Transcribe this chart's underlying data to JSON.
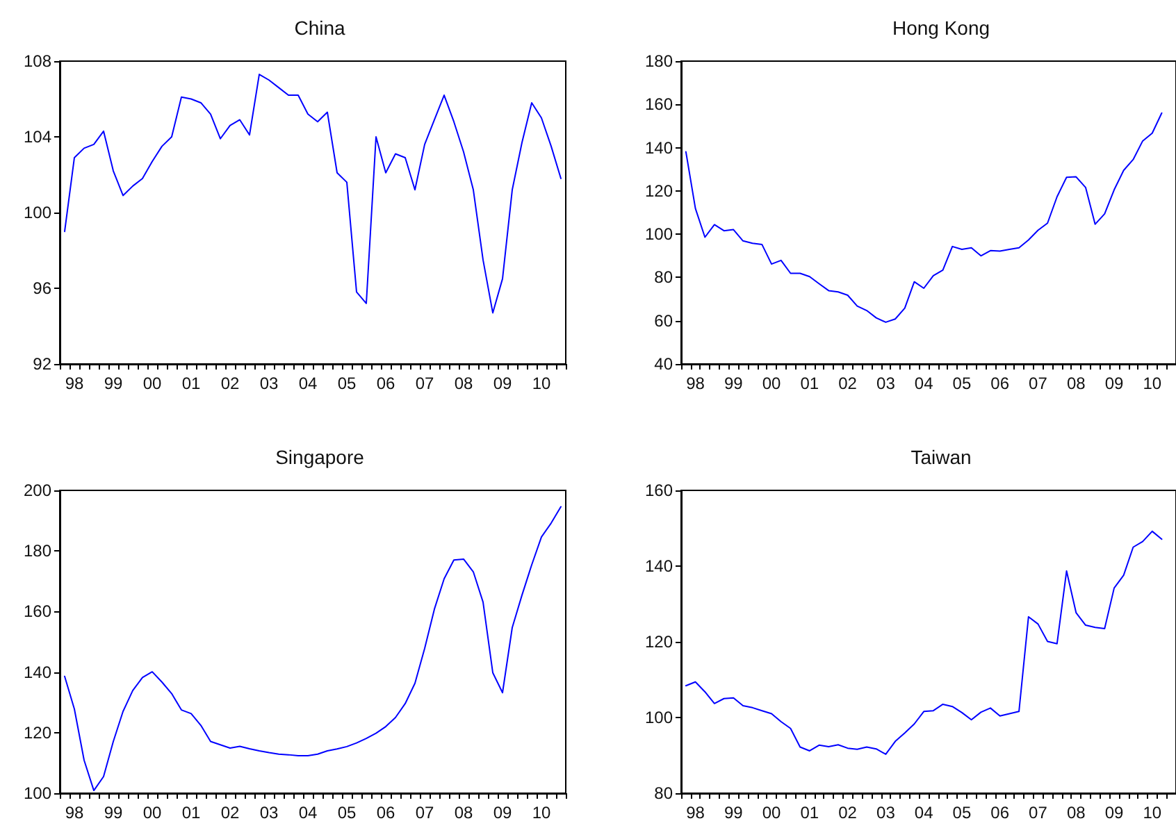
{
  "chart_data": [
    {
      "type": "line",
      "title": "China",
      "categories": [
        null,
        "98",
        null,
        null,
        null,
        "99",
        null,
        null,
        null,
        "00",
        null,
        null,
        null,
        "01",
        null,
        null,
        null,
        "02",
        null,
        null,
        null,
        "03",
        null,
        null,
        null,
        "04",
        null,
        null,
        null,
        "05",
        null,
        null,
        null,
        "06",
        null,
        null,
        null,
        "07",
        null,
        null,
        null,
        "08",
        null,
        null,
        null,
        "09",
        null,
        null,
        null,
        "10",
        null,
        null
      ],
      "series": [
        {
          "color": "#0000ff",
          "values": [
            99.0,
            102.9,
            103.4,
            103.6,
            104.3,
            102.2,
            100.9,
            101.4,
            101.8,
            102.7,
            103.5,
            104.0,
            106.1,
            106.0,
            105.8,
            105.2,
            103.9,
            104.6,
            104.9,
            104.1,
            107.3,
            107.0,
            106.6,
            106.2,
            106.2,
            105.2,
            104.8,
            105.3,
            102.1,
            101.6,
            95.8,
            95.2,
            104.0,
            102.1,
            103.1,
            102.9,
            101.2,
            103.6,
            104.9,
            106.2,
            104.8,
            103.2,
            101.2,
            97.5,
            94.7,
            96.5,
            101.2,
            103.7,
            105.8,
            105.0,
            103.5,
            101.8
          ]
        }
      ],
      "ylim": [
        92,
        108
      ],
      "yticks": [
        92,
        96,
        100,
        104,
        108
      ],
      "grid": false
    },
    {
      "type": "line",
      "title": "Hong Kong",
      "categories": [
        null,
        "98",
        null,
        null,
        null,
        "99",
        null,
        null,
        null,
        "00",
        null,
        null,
        null,
        "01",
        null,
        null,
        null,
        "02",
        null,
        null,
        null,
        "03",
        null,
        null,
        null,
        "04",
        null,
        null,
        null,
        "05",
        null,
        null,
        null,
        "06",
        null,
        null,
        null,
        "07",
        null,
        null,
        null,
        "08",
        null,
        null,
        null,
        "09",
        null,
        null,
        null,
        "10",
        null,
        null
      ],
      "series": [
        {
          "color": "#0000ff",
          "values": [
            138.1,
            111.9,
            98.6,
            104.4,
            101.6,
            102.1,
            96.9,
            95.8,
            95.2,
            86.2,
            87.9,
            81.9,
            81.9,
            80.4,
            77.1,
            73.9,
            73.3,
            71.8,
            66.8,
            64.7,
            61.3,
            59.3,
            60.8,
            65.8,
            78.0,
            75.0,
            80.8,
            83.4,
            94.3,
            93.0,
            93.7,
            90.0,
            92.4,
            92.2,
            93.0,
            93.7,
            97.3,
            101.8,
            105.1,
            117.3,
            126.3,
            126.5,
            121.6,
            104.6,
            109.4,
            120.5,
            129.5,
            134.5,
            143.1,
            146.7,
            156.0,
            null
          ]
        }
      ],
      "ylim": [
        40,
        180
      ],
      "yticks": [
        40,
        60,
        80,
        100,
        120,
        140,
        160,
        180
      ],
      "grid": false
    },
    {
      "type": "line",
      "title": "Singapore",
      "categories": [
        null,
        "98",
        null,
        null,
        null,
        "99",
        null,
        null,
        null,
        "00",
        null,
        null,
        null,
        "01",
        null,
        null,
        null,
        "02",
        null,
        null,
        null,
        "03",
        null,
        null,
        null,
        "04",
        null,
        null,
        null,
        "05",
        null,
        null,
        null,
        "06",
        null,
        null,
        null,
        "07",
        null,
        null,
        null,
        "08",
        null,
        null,
        null,
        "09",
        null,
        null,
        null,
        "10",
        null,
        null
      ],
      "series": [
        {
          "color": "#0000ff",
          "values": [
            138.6,
            127.8,
            110.9,
            100.9,
            105.5,
            117.1,
            127.0,
            133.9,
            138.2,
            140.1,
            136.7,
            132.9,
            127.5,
            126.3,
            122.4,
            117.1,
            116.0,
            114.9,
            115.5,
            114.7,
            114.0,
            113.4,
            112.9,
            112.7,
            112.4,
            112.4,
            112.9,
            114.0,
            114.6,
            115.4,
            116.6,
            118.1,
            119.8,
            122.0,
            125.0,
            129.6,
            136.3,
            147.8,
            160.8,
            170.8,
            177.0,
            177.3,
            173.1,
            163.1,
            139.8,
            133.2,
            154.7,
            165.4,
            175.4,
            184.6,
            189.2,
            194.6
          ]
        }
      ],
      "ylim": [
        100,
        200
      ],
      "yticks": [
        100,
        120,
        140,
        160,
        180,
        200
      ],
      "grid": false
    },
    {
      "type": "line",
      "title": "Taiwan",
      "categories": [
        null,
        "98",
        null,
        null,
        null,
        "99",
        null,
        null,
        null,
        "00",
        null,
        null,
        null,
        "01",
        null,
        null,
        null,
        "02",
        null,
        null,
        null,
        "03",
        null,
        null,
        null,
        "04",
        null,
        null,
        null,
        "05",
        null,
        null,
        null,
        "06",
        null,
        null,
        null,
        "07",
        null,
        null,
        null,
        "08",
        null,
        null,
        null,
        "09",
        null,
        null,
        null,
        "10",
        null,
        null
      ],
      "series": [
        {
          "color": "#0000ff",
          "values": [
            108.4,
            109.4,
            106.8,
            103.7,
            105.0,
            105.2,
            103.1,
            102.6,
            101.8,
            101.0,
            98.9,
            97.1,
            92.2,
            91.2,
            92.7,
            92.3,
            92.8,
            91.9,
            91.6,
            92.2,
            91.7,
            90.3,
            93.7,
            95.9,
            98.3,
            101.6,
            101.8,
            103.5,
            102.9,
            101.3,
            99.4,
            101.4,
            102.5,
            100.4,
            101.0,
            101.6,
            126.6,
            124.7,
            120.1,
            119.5,
            138.7,
            127.7,
            124.4,
            123.8,
            123.5,
            134.2,
            137.6,
            145.0,
            146.5,
            149.2,
            147.1,
            null
          ]
        }
      ],
      "ylim": [
        80,
        160
      ],
      "yticks": [
        80,
        100,
        120,
        140,
        160
      ],
      "grid": false
    }
  ]
}
